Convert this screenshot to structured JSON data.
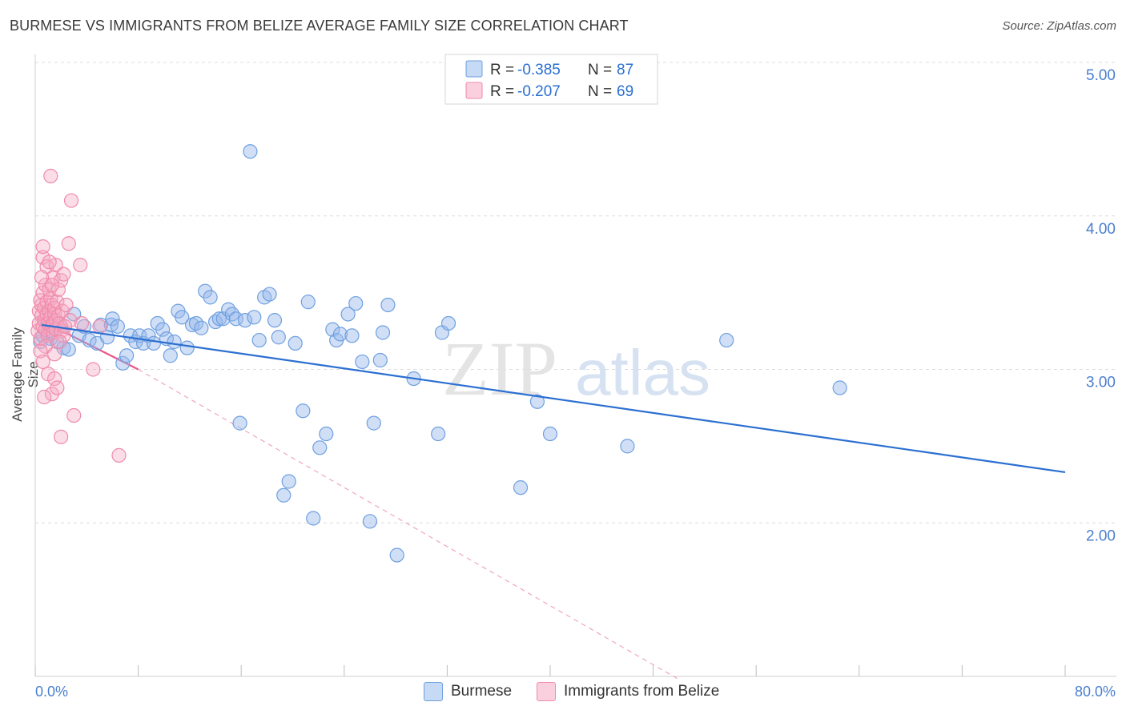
{
  "header": {
    "title": "BURMESE VS IMMIGRANTS FROM BELIZE AVERAGE FAMILY SIZE CORRELATION CHART",
    "source": "Source: ZipAtlas.com"
  },
  "watermark": {
    "zip": "ZIP",
    "atlas": "atlas"
  },
  "colors": {
    "blue": "#6fa0e0",
    "blue_line": "#2b6fd1",
    "pink": "#f08aab",
    "pink_line": "#e8578a",
    "axis_text": "#4a7fd0"
  },
  "chart_data": {
    "type": "scatter",
    "title": "BURMESE VS IMMIGRANTS FROM BELIZE AVERAGE FAMILY SIZE CORRELATION CHART",
    "ylabel": "Average Family Size",
    "xlim": [
      0,
      80
    ],
    "ylim": [
      1.0,
      5.0
    ],
    "x_tick_labels": {
      "min": "0.0%",
      "max": "80.0%"
    },
    "y_ticks": [
      {
        "value": 2.0,
        "label": "2.00"
      },
      {
        "value": 3.0,
        "label": "3.00"
      },
      {
        "value": 4.0,
        "label": "4.00"
      },
      {
        "value": 5.0,
        "label": "5.00"
      }
    ],
    "grid": "horizontal dashed",
    "legend": {
      "placement": "top-center",
      "entries": [
        {
          "series": "Burmese",
          "r_label": "R =",
          "r_value": "-0.385",
          "n_label": "N =",
          "n_value": "87"
        },
        {
          "series": "Immigrants from Belize",
          "r_label": "R =",
          "r_value": "-0.207",
          "n_label": "N =",
          "n_value": "69"
        }
      ]
    },
    "series": [
      {
        "name": "Burmese",
        "trend": {
          "x": [
            0.5,
            80
          ],
          "y": [
            3.29,
            2.33
          ]
        },
        "points": [
          [
            0.4,
            3.18
          ],
          [
            0.6,
            3.22
          ],
          [
            1.0,
            3.25
          ],
          [
            1.2,
            3.2
          ],
          [
            1.4,
            3.3
          ],
          [
            1.7,
            3.18
          ],
          [
            2.0,
            3.28
          ],
          [
            2.2,
            3.14
          ],
          [
            2.6,
            3.13
          ],
          [
            3.0,
            3.36
          ],
          [
            3.4,
            3.22
          ],
          [
            3.8,
            3.28
          ],
          [
            4.2,
            3.19
          ],
          [
            4.8,
            3.17
          ],
          [
            5.1,
            3.29
          ],
          [
            5.6,
            3.21
          ],
          [
            5.9,
            3.29
          ],
          [
            6.0,
            3.33
          ],
          [
            6.4,
            3.28
          ],
          [
            6.8,
            3.04
          ],
          [
            7.1,
            3.09
          ],
          [
            7.4,
            3.22
          ],
          [
            7.8,
            3.18
          ],
          [
            8.1,
            3.22
          ],
          [
            8.4,
            3.17
          ],
          [
            8.8,
            3.22
          ],
          [
            9.2,
            3.17
          ],
          [
            9.5,
            3.3
          ],
          [
            9.9,
            3.26
          ],
          [
            10.2,
            3.2
          ],
          [
            10.5,
            3.09
          ],
          [
            10.8,
            3.18
          ],
          [
            11.1,
            3.38
          ],
          [
            11.4,
            3.34
          ],
          [
            11.8,
            3.14
          ],
          [
            12.2,
            3.29
          ],
          [
            12.5,
            3.3
          ],
          [
            12.9,
            3.27
          ],
          [
            13.2,
            3.51
          ],
          [
            13.6,
            3.47
          ],
          [
            14.0,
            3.31
          ],
          [
            14.3,
            3.33
          ],
          [
            14.6,
            3.33
          ],
          [
            15.0,
            3.39
          ],
          [
            15.3,
            3.36
          ],
          [
            15.6,
            3.33
          ],
          [
            15.9,
            2.65
          ],
          [
            16.3,
            3.32
          ],
          [
            16.7,
            4.42
          ],
          [
            17.0,
            3.34
          ],
          [
            17.4,
            3.19
          ],
          [
            17.8,
            3.47
          ],
          [
            18.2,
            3.49
          ],
          [
            18.6,
            3.32
          ],
          [
            18.9,
            3.21
          ],
          [
            19.3,
            2.18
          ],
          [
            19.7,
            2.27
          ],
          [
            20.2,
            3.17
          ],
          [
            20.8,
            2.73
          ],
          [
            21.2,
            3.44
          ],
          [
            21.6,
            2.03
          ],
          [
            22.1,
            2.49
          ],
          [
            22.6,
            2.58
          ],
          [
            23.1,
            3.26
          ],
          [
            23.4,
            3.19
          ],
          [
            23.7,
            3.23
          ],
          [
            24.3,
            3.36
          ],
          [
            24.6,
            3.22
          ],
          [
            24.9,
            3.43
          ],
          [
            25.4,
            3.05
          ],
          [
            26.0,
            2.01
          ],
          [
            26.3,
            2.65
          ],
          [
            26.8,
            3.06
          ],
          [
            27.0,
            3.24
          ],
          [
            27.4,
            3.42
          ],
          [
            28.1,
            1.79
          ],
          [
            29.4,
            2.94
          ],
          [
            31.3,
            2.58
          ],
          [
            31.6,
            3.24
          ],
          [
            32.1,
            3.3
          ],
          [
            37.7,
            2.23
          ],
          [
            39.0,
            2.79
          ],
          [
            40.0,
            2.58
          ],
          [
            46.0,
            2.5
          ],
          [
            53.7,
            3.19
          ],
          [
            62.5,
            2.88
          ],
          [
            0.9,
            3.3
          ]
        ]
      },
      {
        "name": "Immigrants from Belize",
        "trend": {
          "x": [
            0.2,
            8.0
          ],
          "y": [
            3.33,
            3.0
          ]
        },
        "trend_extension": {
          "x": [
            8.0,
            50
          ],
          "y": [
            3.0,
            0.98
          ]
        },
        "points": [
          [
            0.2,
            3.25
          ],
          [
            0.3,
            3.3
          ],
          [
            0.3,
            3.38
          ],
          [
            0.4,
            3.45
          ],
          [
            0.4,
            3.2
          ],
          [
            0.5,
            3.35
          ],
          [
            0.5,
            3.42
          ],
          [
            0.6,
            3.28
          ],
          [
            0.6,
            3.5
          ],
          [
            0.7,
            3.32
          ],
          [
            0.7,
            3.4
          ],
          [
            0.8,
            3.26
          ],
          [
            0.8,
            3.55
          ],
          [
            0.9,
            3.36
          ],
          [
            0.9,
            3.44
          ],
          [
            1.0,
            3.3
          ],
          [
            1.0,
            3.22
          ],
          [
            1.1,
            3.52
          ],
          [
            1.1,
            3.38
          ],
          [
            1.2,
            3.34
          ],
          [
            1.2,
            3.46
          ],
          [
            1.3,
            3.28
          ],
          [
            1.3,
            3.42
          ],
          [
            1.4,
            3.3
          ],
          [
            1.4,
            3.24
          ],
          [
            1.5,
            3.36
          ],
          [
            1.5,
            3.4
          ],
          [
            1.6,
            3.32
          ],
          [
            1.6,
            3.26
          ],
          [
            1.7,
            3.44
          ],
          [
            1.8,
            3.35
          ],
          [
            1.9,
            3.3
          ],
          [
            2.0,
            3.25
          ],
          [
            2.1,
            3.38
          ],
          [
            2.2,
            3.22
          ],
          [
            0.6,
            3.73
          ],
          [
            0.6,
            3.8
          ],
          [
            0.9,
            3.67
          ],
          [
            1.2,
            4.26
          ],
          [
            1.4,
            3.6
          ],
          [
            1.6,
            3.68
          ],
          [
            1.8,
            3.52
          ],
          [
            2.0,
            3.58
          ],
          [
            2.2,
            3.62
          ],
          [
            2.6,
            3.82
          ],
          [
            2.8,
            4.1
          ],
          [
            3.5,
            3.68
          ],
          [
            1.0,
            2.97
          ],
          [
            1.3,
            2.84
          ],
          [
            1.5,
            2.94
          ],
          [
            1.7,
            2.88
          ],
          [
            0.7,
            2.82
          ],
          [
            2.0,
            2.56
          ],
          [
            3.0,
            2.7
          ],
          [
            4.5,
            3.0
          ],
          [
            6.5,
            2.44
          ],
          [
            0.5,
            3.6
          ],
          [
            1.1,
            3.7
          ],
          [
            0.8,
            3.15
          ],
          [
            1.9,
            3.18
          ],
          [
            2.4,
            3.42
          ],
          [
            0.4,
            3.12
          ],
          [
            1.5,
            3.1
          ],
          [
            2.7,
            3.32
          ],
          [
            3.6,
            3.3
          ],
          [
            5.0,
            3.28
          ],
          [
            0.6,
            3.05
          ],
          [
            1.3,
            3.55
          ],
          [
            2.3,
            3.28
          ]
        ]
      }
    ]
  }
}
